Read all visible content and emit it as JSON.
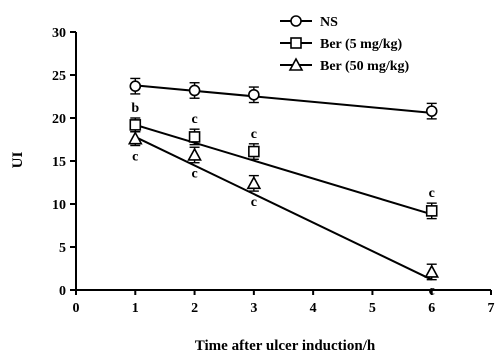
{
  "chart_data": {
    "type": "line",
    "title": "",
    "xlabel": "Time after ulcer induction/h",
    "ylabel": "UI",
    "xlim": [
      0,
      7
    ],
    "ylim": [
      0,
      30
    ],
    "x_ticks": [
      "0",
      "1",
      "2",
      "3",
      "4",
      "5",
      "6",
      "7"
    ],
    "y_ticks": [
      "0",
      "5",
      "10",
      "15",
      "20",
      "25",
      "30"
    ],
    "grid": false,
    "legend_position": "top-right",
    "series": [
      {
        "name": "NS",
        "marker": "circle",
        "x": [
          1,
          2,
          3,
          6
        ],
        "y": [
          23.7,
          23.2,
          22.7,
          20.8
        ],
        "error": [
          0.9,
          0.9,
          0.9,
          0.9
        ],
        "fit_line": [
          [
            1,
            23.8
          ],
          [
            6,
            20.6
          ]
        ],
        "annotations": [
          "",
          "",
          "",
          ""
        ]
      },
      {
        "name": "Ber (5 mg/kg)",
        "marker": "square",
        "x": [
          1,
          2,
          3,
          6
        ],
        "y": [
          19.2,
          17.8,
          16.1,
          9.2
        ],
        "error": [
          0.8,
          0.9,
          0.9,
          0.9
        ],
        "fit_line": [
          [
            1,
            19.2
          ],
          [
            6,
            8.8
          ]
        ],
        "annotations": [
          "b",
          "c",
          "c",
          "c"
        ]
      },
      {
        "name": "Ber (50 mg/kg)",
        "marker": "triangle",
        "x": [
          1,
          2,
          3,
          6
        ],
        "y": [
          17.6,
          15.7,
          12.4,
          2.1
        ],
        "error": [
          0.8,
          0.9,
          0.9,
          0.9
        ],
        "fit_line": [
          [
            1,
            17.8
          ],
          [
            6,
            1.2
          ]
        ],
        "annotations": [
          "c",
          "c",
          "c",
          "c"
        ]
      }
    ]
  }
}
